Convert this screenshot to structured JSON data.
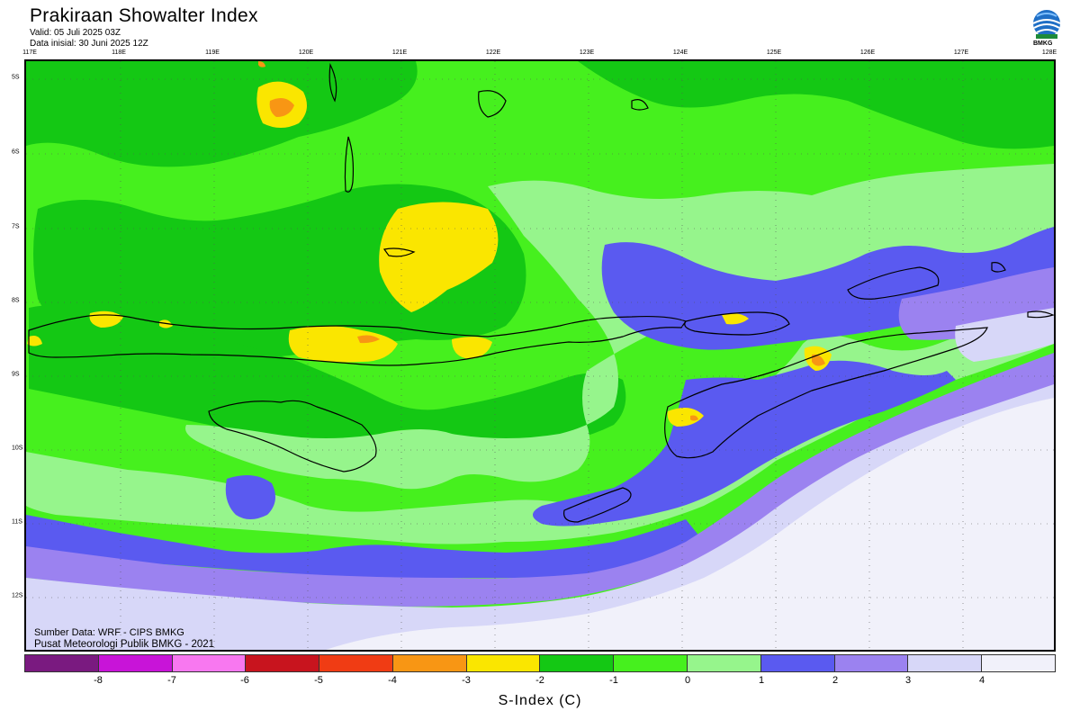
{
  "header": {
    "title": "Prakiraan Showalter Index",
    "valid": "Valid: 05 Juli 2025 03Z",
    "initial": "Data inisial: 30 Juni 2025 12Z",
    "logo_text": "BMKG"
  },
  "map": {
    "lon_labels": [
      "117E",
      "118E",
      "119E",
      "120E",
      "121E",
      "122E",
      "123E",
      "124E",
      "125E",
      "126E",
      "127E",
      "128E"
    ],
    "lat_labels": [
      "5S",
      "6S",
      "7S",
      "8S",
      "9S",
      "10S",
      "11S",
      "12S"
    ]
  },
  "footer": {
    "source": "Sumber Data: WRF - CIPS BMKG",
    "center": "Pusat Meteorologi Publik BMKG - 2021"
  },
  "colorbar": {
    "colors": [
      "#7a1a80",
      "#c814d8",
      "#f878f0",
      "#c8141e",
      "#f03c14",
      "#f89614",
      "#fae600",
      "#14c814",
      "#46f01e",
      "#96f58c",
      "#5a5af0",
      "#9b82f0",
      "#d7d7f8",
      "#f1f1fa"
    ],
    "ticks": [
      "-8",
      "-7",
      "-6",
      "-5",
      "-4",
      "-3",
      "-2",
      "-1",
      "0",
      "1",
      "2",
      "3",
      "4"
    ],
    "label": "S-Index (C)"
  }
}
